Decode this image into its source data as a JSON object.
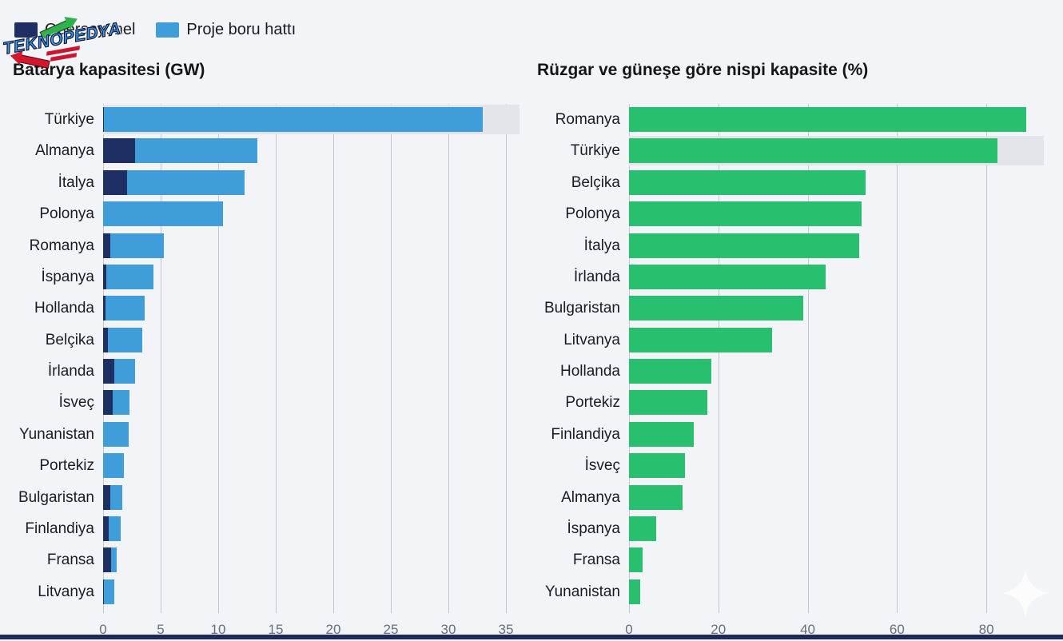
{
  "page": {
    "background_color": "#f3f4f8",
    "bottom_bar_color": "#1e2a5c"
  },
  "watermark": {
    "name": "TEKNOPEDYA",
    "text_color": "#38a1e5",
    "arrow_up_color": "#2fb14c",
    "arrow_down_color": "#d5172e"
  },
  "legend": {
    "items": [
      {
        "label": "Operasyonel",
        "color": "#1e2f63"
      },
      {
        "label": "Proje boru hattı",
        "color": "#3f9ed9"
      }
    ]
  },
  "chart_data": [
    {
      "type": "bar",
      "orientation": "horizontal",
      "stacked": true,
      "title": "Batarya kapasitesi (GW)",
      "xlim": [
        0,
        35
      ],
      "xticks": [
        0,
        5,
        10,
        15,
        20,
        25,
        30,
        35
      ],
      "grid": true,
      "highlight_category": "Türkiye",
      "highlight_color": "#e3e5ea",
      "categories": [
        "Türkiye",
        "Almanya",
        "İtalya",
        "Polonya",
        "Romanya",
        "İspanya",
        "Hollanda",
        "Belçika",
        "İrlanda",
        "İsveç",
        "Yunanistan",
        "Portekiz",
        "Bulgaristan",
        "Finlandiya",
        "Fransa",
        "Litvanya"
      ],
      "series": [
        {
          "name": "Operasyonel",
          "color": "#1e2f63",
          "values": [
            0.1,
            2.8,
            2.1,
            0,
            0.6,
            0.3,
            0.2,
            0.4,
            1.0,
            0.8,
            0,
            0,
            0.6,
            0.5,
            0.7,
            0.1
          ]
        },
        {
          "name": "Proje boru hattı",
          "color": "#3f9ed9",
          "values": [
            32.9,
            10.6,
            10.2,
            10.4,
            4.7,
            4.1,
            3.4,
            3.0,
            1.8,
            1.5,
            2.2,
            1.8,
            1.1,
            1.0,
            0.5,
            0.9
          ]
        }
      ]
    },
    {
      "type": "bar",
      "orientation": "horizontal",
      "stacked": false,
      "title": "Rüzgar ve güneşe göre nispi kapasite (%)",
      "xlim": [
        0,
        90
      ],
      "xticks": [
        0,
        20,
        40,
        60,
        80
      ],
      "grid": true,
      "highlight_category": "Türkiye",
      "highlight_color": "#e3e5ea",
      "categories": [
        "Romanya",
        "Türkiye",
        "Belçika",
        "Polonya",
        "İtalya",
        "İrlanda",
        "Bulgaristan",
        "Litvanya",
        "Hollanda",
        "Portekiz",
        "Finlandiya",
        "İsveç",
        "Almanya",
        "İspanya",
        "Fransa",
        "Yunanistan"
      ],
      "series": [
        {
          "name": "Nispi kapasite",
          "color": "#28c06e",
          "values": [
            89,
            82.5,
            53,
            52,
            51.5,
            44,
            39,
            32,
            18.5,
            17.5,
            14.5,
            12.5,
            12,
            6,
            3,
            2.5
          ]
        }
      ]
    }
  ]
}
